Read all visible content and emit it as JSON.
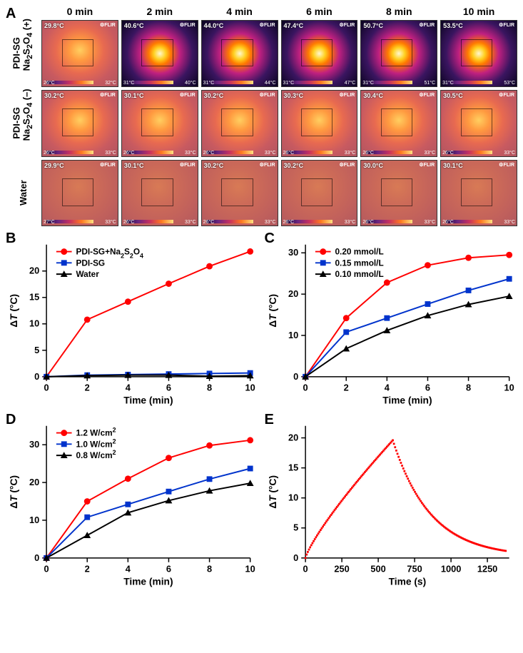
{
  "panelA": {
    "time_labels": [
      "0 min",
      "2 min",
      "4 min",
      "6 min",
      "8 min",
      "10 min"
    ],
    "rows": [
      {
        "label_html": "PDI-SG\nNa₂S₂O₄ (+)",
        "style_class": "hot_row",
        "cells": [
          {
            "temp": "29.8°C",
            "cls": "warm",
            "bl": "26°C",
            "br": "32°C"
          },
          {
            "temp": "40.6°C",
            "cls": "hot",
            "bl": "31°C",
            "br": "40°C"
          },
          {
            "temp": "44.0°C",
            "cls": "hot",
            "bl": "31°C",
            "br": "44°C"
          },
          {
            "temp": "47.4°C",
            "cls": "hot",
            "bl": "31°C",
            "br": "47°C"
          },
          {
            "temp": "50.7°C",
            "cls": "hot",
            "bl": "31°C",
            "br": "51°C"
          },
          {
            "temp": "53.5°C",
            "cls": "hot",
            "bl": "31°C",
            "br": "53°C"
          }
        ]
      },
      {
        "label_html": "PDI-SG\nNa₂S₂O₄ (–)",
        "cells": [
          {
            "temp": "30.2°C",
            "cls": "warm",
            "bl": "26°C",
            "br": "33°C"
          },
          {
            "temp": "30.1°C",
            "cls": "warm",
            "bl": "26°C",
            "br": "33°C"
          },
          {
            "temp": "30.2°C",
            "cls": "warm",
            "bl": "26°C",
            "br": "33°C"
          },
          {
            "temp": "30.3°C",
            "cls": "warm",
            "bl": "26°C",
            "br": "33°C"
          },
          {
            "temp": "30.4°C",
            "cls": "warm",
            "bl": "26°C",
            "br": "33°C"
          },
          {
            "temp": "30.5°C",
            "cls": "warm",
            "bl": "26°C",
            "br": "33°C"
          }
        ]
      },
      {
        "label_html": "Water",
        "cells": [
          {
            "temp": "29.9°C",
            "cls": "cool",
            "bl": "27°C",
            "br": "33°C"
          },
          {
            "temp": "30.1°C",
            "cls": "cool",
            "bl": "26°C",
            "br": "33°C"
          },
          {
            "temp": "30.2°C",
            "cls": "cool",
            "bl": "26°C",
            "br": "33°C"
          },
          {
            "temp": "30.2°C",
            "cls": "cool",
            "bl": "26°C",
            "br": "33°C"
          },
          {
            "temp": "30.0°C",
            "cls": "cool",
            "bl": "26°C",
            "br": "33°C"
          },
          {
            "temp": "30.1°C",
            "cls": "cool",
            "bl": "26°C",
            "br": "33°C"
          }
        ]
      }
    ],
    "flir_label": "⚙FLIR"
  },
  "panelB": {
    "type": "line",
    "xlabel": "Time (min)",
    "ylabel": "ΔT (°C)",
    "xlim": [
      0,
      10
    ],
    "xtick_step": 2,
    "ylim": [
      0,
      25
    ],
    "yticks": [
      0,
      5,
      10,
      15,
      20
    ],
    "series": [
      {
        "name": "PDI-SG+Na₂S₂O₄",
        "color": "#ff0000",
        "marker": "circle",
        "x": [
          0,
          2,
          4,
          6,
          8,
          10
        ],
        "y": [
          0,
          10.8,
          14.2,
          17.6,
          20.9,
          23.7
        ]
      },
      {
        "name": "PDI-SG",
        "color": "#0033cc",
        "marker": "square",
        "x": [
          0,
          2,
          4,
          6,
          8,
          10
        ],
        "y": [
          0,
          0.3,
          0.4,
          0.5,
          0.6,
          0.7
        ]
      },
      {
        "name": "Water",
        "color": "#000000",
        "marker": "triangle",
        "x": [
          0,
          2,
          4,
          6,
          8,
          10
        ],
        "y": [
          0,
          0.2,
          0.3,
          0.3,
          0.1,
          0.2
        ]
      }
    ],
    "legend_pos": "top-left-inside"
  },
  "panelC": {
    "type": "line",
    "xlabel": "Time (min)",
    "ylabel": "ΔT (°C)",
    "xlim": [
      0,
      10
    ],
    "xtick_step": 2,
    "ylim": [
      0,
      32
    ],
    "yticks": [
      0,
      10,
      20,
      30
    ],
    "series": [
      {
        "name": "0.20 mmol/L",
        "color": "#ff0000",
        "marker": "circle",
        "x": [
          0,
          2,
          4,
          6,
          8,
          10
        ],
        "y": [
          0,
          14.2,
          22.8,
          27.0,
          28.8,
          29.5
        ]
      },
      {
        "name": "0.15 mmol/L",
        "color": "#0033cc",
        "marker": "square",
        "x": [
          0,
          2,
          4,
          6,
          8,
          10
        ],
        "y": [
          0,
          10.8,
          14.2,
          17.6,
          20.9,
          23.7
        ]
      },
      {
        "name": "0.10 mmol/L",
        "color": "#000000",
        "marker": "triangle",
        "x": [
          0,
          2,
          4,
          6,
          8,
          10
        ],
        "y": [
          0,
          6.8,
          11.2,
          14.8,
          17.5,
          19.5
        ]
      }
    ]
  },
  "panelD": {
    "type": "line",
    "xlabel": "Time (min)",
    "ylabel": "ΔT (°C)",
    "xlim": [
      0,
      10
    ],
    "xtick_step": 2,
    "ylim": [
      0,
      35
    ],
    "yticks": [
      0,
      10,
      20,
      30
    ],
    "series": [
      {
        "name": "1.2 W/cm²",
        "color": "#ff0000",
        "marker": "circle",
        "x": [
          0,
          2,
          4,
          6,
          8,
          10
        ],
        "y": [
          0,
          15.0,
          21.0,
          26.5,
          29.8,
          31.2
        ]
      },
      {
        "name": "1.0 W/cm²",
        "color": "#0033cc",
        "marker": "square",
        "x": [
          0,
          2,
          4,
          6,
          8,
          10
        ],
        "y": [
          0,
          10.8,
          14.2,
          17.6,
          20.9,
          23.7
        ]
      },
      {
        "name": "0.8 W/cm²",
        "color": "#000000",
        "marker": "triangle",
        "x": [
          0,
          2,
          4,
          6,
          8,
          10
        ],
        "y": [
          0,
          6.0,
          12.0,
          15.2,
          17.8,
          19.8
        ]
      }
    ]
  },
  "panelE": {
    "type": "scatter-dense",
    "xlabel": "Time (s)",
    "ylabel": "ΔT (°C)",
    "xlim": [
      0,
      1400
    ],
    "xticks": [
      0,
      250,
      500,
      750,
      1000,
      1250
    ],
    "ylim": [
      0,
      22
    ],
    "yticks": [
      0,
      5,
      10,
      15,
      20
    ],
    "color": "#ff0000",
    "heating": {
      "t_start": 0,
      "t_end": 600,
      "T_start": 0,
      "T_end": 19.6
    },
    "cooling": {
      "t_start": 600,
      "t_end": 1380,
      "T_start": 19.6,
      "T_end": 0.2,
      "tau": 260
    }
  },
  "colors": {
    "red": "#ff0000",
    "blue": "#0033cc",
    "black": "#000000",
    "background": "#ffffff"
  },
  "fonts": {
    "panel_label_pt": 20,
    "axis_label_pt": 14,
    "tick_pt": 13,
    "legend_pt": 12
  }
}
